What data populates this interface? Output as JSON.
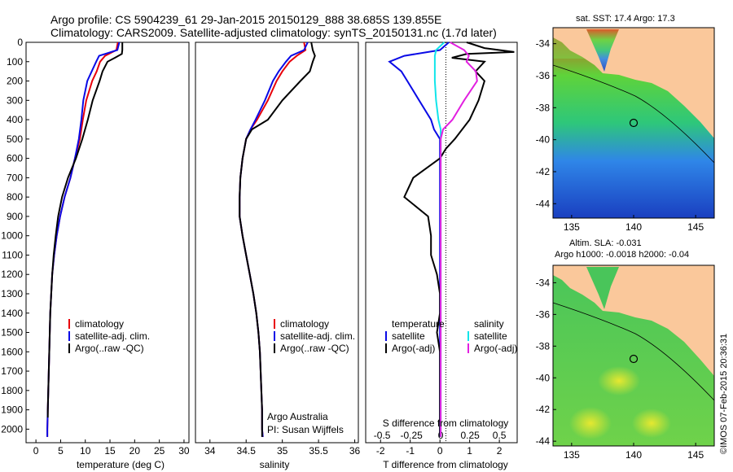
{
  "header": {
    "line1": "Argo profile: CS 5904239_61 29-Jan-2015 20150129_888 38.685S 139.855E",
    "line2": "Climatology: CARS2009. Satellite-adjusted climatology: synTS_20150131.nc (1.7d later)"
  },
  "colors": {
    "climatology": "#e8000b",
    "satellite": "#0a0ae6",
    "argo": "#000000",
    "sat_salinity": "#11e5ea",
    "argo_salinity_adj": "#e21fe0"
  },
  "panels": {
    "depth_ticks": [
      "0",
      "100",
      "200",
      "300",
      "400",
      "500",
      "600",
      "700",
      "800",
      "900",
      "1000",
      "1100",
      "1200",
      "1300",
      "1400",
      "1500",
      "1600",
      "1700",
      "1800",
      "1900",
      "2000"
    ],
    "temperature": {
      "xlabel": "temperature (deg C)",
      "xticks": [
        "0",
        "5",
        "10",
        "15",
        "20",
        "25",
        "30"
      ],
      "legend": [
        "climatology",
        "satellite-adj. clim.",
        "Argo(..raw -QC)"
      ]
    },
    "salinity": {
      "xlabel": "salinity",
      "xticks": [
        "34",
        "34.5",
        "35",
        "35.5",
        "36"
      ],
      "legend": [
        "climatology",
        "satellite-adj. clim.",
        "Argo(..raw -QC)"
      ],
      "note1": "Argo Australia",
      "note2": "PI: Susan Wijffels"
    },
    "difference": {
      "xlabel": "T difference from climatology",
      "top_label": "S difference from climatology",
      "sticks": [
        "-0.5",
        "-0.25",
        "0",
        "0.25",
        "0.5"
      ],
      "xticks": [
        "-2",
        "-1",
        "0",
        "1",
        "2"
      ],
      "legend_t_title": "temperature",
      "legend_s_title": "salinity",
      "legend": [
        "satellite",
        "Argo(-adj)",
        "satellite",
        "Argo(-adj)"
      ]
    }
  },
  "maps": {
    "sst_title": "sat. SST: 17.4  Argo: 17.3",
    "sla_title1": "Altim. SLA: -0.031",
    "sla_title2": "Argo h1000: -0.0018 h2000: -0.04",
    "lat_ticks": [
      "-34",
      "-36",
      "-38",
      "-40",
      "-42",
      "-44"
    ],
    "lon_ticks": [
      "135",
      "140",
      "145"
    ],
    "stamp": "©IMOS 07-Feb-2015 20:36:31"
  },
  "chart_data": [
    {
      "type": "line",
      "title": "",
      "xlabel": "temperature (deg C)",
      "ylabel": "",
      "xlim": [
        -2,
        31
      ],
      "ylim": [
        2070,
        0
      ],
      "series": [
        {
          "name": "climatology",
          "points": [
            [
              16.6,
              0
            ],
            [
              16.3,
              40
            ],
            [
              14,
              70
            ],
            [
              13,
              100
            ],
            [
              12.3,
              150
            ],
            [
              11.4,
              200
            ],
            [
              10.2,
              300
            ],
            [
              9.5,
              400
            ],
            [
              8.9,
              500
            ],
            [
              7.9,
              600
            ],
            [
              7,
              700
            ],
            [
              5.8,
              800
            ],
            [
              4.9,
              900
            ],
            [
              4.2,
              1000
            ],
            [
              3.7,
              1100
            ],
            [
              3.3,
              1200
            ],
            [
              3.1,
              1300
            ],
            [
              2.9,
              1400
            ],
            [
              2.8,
              1500
            ],
            [
              2.7,
              1600
            ],
            [
              2.6,
              1700
            ],
            [
              2.5,
              1800
            ],
            [
              2.4,
              1900
            ],
            [
              2.3,
              2000
            ],
            [
              2.3,
              2040
            ]
          ]
        },
        {
          "name": "satellite-adj. clim.",
          "points": [
            [
              16.9,
              0
            ],
            [
              16.5,
              40
            ],
            [
              12.8,
              70
            ],
            [
              12.2,
              100
            ],
            [
              11.3,
              150
            ],
            [
              10.4,
              200
            ],
            [
              9.6,
              300
            ],
            [
              9.2,
              400
            ],
            [
              8.7,
              500
            ],
            [
              7.9,
              600
            ],
            [
              7,
              700
            ],
            [
              5.8,
              800
            ],
            [
              4.9,
              900
            ],
            [
              4.2,
              1000
            ],
            [
              3.7,
              1100
            ],
            [
              3.3,
              1200
            ],
            [
              3.1,
              1300
            ],
            [
              2.9,
              1400
            ],
            [
              2.8,
              1500
            ],
            [
              2.7,
              1600
            ],
            [
              2.6,
              1700
            ],
            [
              2.5,
              1800
            ],
            [
              2.4,
              1900
            ],
            [
              2.3,
              2000
            ],
            [
              2.3,
              2040
            ]
          ]
        },
        {
          "name": "Argo(..raw -QC)",
          "points": [
            [
              17.5,
              0
            ],
            [
              17.5,
              40
            ],
            [
              17.4,
              60
            ],
            [
              16,
              80
            ],
            [
              14.5,
              100
            ],
            [
              13.5,
              150
            ],
            [
              12.9,
              200
            ],
            [
              11.5,
              300
            ],
            [
              10.5,
              400
            ],
            [
              9.4,
              500
            ],
            [
              8.1,
              600
            ],
            [
              6.5,
              700
            ],
            [
              5.3,
              800
            ],
            [
              4.5,
              900
            ],
            [
              4,
              1000
            ],
            [
              3.6,
              1100
            ],
            [
              3.3,
              1200
            ],
            [
              3.1,
              1300
            ],
            [
              2.9,
              1400
            ],
            [
              2.8,
              1500
            ],
            [
              2.7,
              1600
            ],
            [
              2.6,
              1700
            ],
            [
              2.5,
              1800
            ],
            [
              2.4,
              1900
            ],
            [
              2.4,
              1940
            ]
          ]
        }
      ]
    },
    {
      "type": "line",
      "title": "",
      "xlabel": "salinity",
      "ylabel": "",
      "xlim": [
        33.8,
        36.05
      ],
      "ylim": [
        2070,
        0
      ],
      "series": [
        {
          "name": "climatology",
          "points": [
            [
              35.3,
              0
            ],
            [
              35.32,
              40
            ],
            [
              35.2,
              70
            ],
            [
              35.1,
              100
            ],
            [
              35.0,
              150
            ],
            [
              34.92,
              200
            ],
            [
              34.8,
              300
            ],
            [
              34.65,
              400
            ],
            [
              34.56,
              450
            ],
            [
              34.5,
              500
            ],
            [
              34.45,
              600
            ],
            [
              34.42,
              700
            ],
            [
              34.41,
              800
            ],
            [
              34.41,
              900
            ],
            [
              34.45,
              1000
            ],
            [
              34.5,
              1100
            ],
            [
              34.55,
              1200
            ],
            [
              34.6,
              1300
            ],
            [
              34.64,
              1400
            ],
            [
              34.67,
              1500
            ],
            [
              34.69,
              1600
            ],
            [
              34.7,
              1700
            ],
            [
              34.71,
              1800
            ],
            [
              34.72,
              1900
            ],
            [
              34.72,
              2000
            ],
            [
              34.73,
              2040
            ]
          ]
        },
        {
          "name": "satellite-adj. clim.",
          "points": [
            [
              35.35,
              0
            ],
            [
              35.3,
              40
            ],
            [
              35.12,
              70
            ],
            [
              35.05,
              100
            ],
            [
              34.95,
              150
            ],
            [
              34.87,
              200
            ],
            [
              34.76,
              300
            ],
            [
              34.63,
              400
            ],
            [
              34.56,
              450
            ],
            [
              34.5,
              500
            ],
            [
              34.45,
              600
            ],
            [
              34.42,
              700
            ],
            [
              34.41,
              800
            ],
            [
              34.41,
              900
            ],
            [
              34.45,
              1000
            ],
            [
              34.5,
              1100
            ],
            [
              34.55,
              1200
            ],
            [
              34.6,
              1300
            ],
            [
              34.64,
              1400
            ],
            [
              34.67,
              1500
            ],
            [
              34.69,
              1600
            ],
            [
              34.7,
              1700
            ],
            [
              34.71,
              1800
            ],
            [
              34.72,
              1900
            ],
            [
              34.72,
              2000
            ],
            [
              34.73,
              2040
            ]
          ]
        },
        {
          "name": "Argo(..raw -QC)",
          "points": [
            [
              35.4,
              0
            ],
            [
              35.42,
              40
            ],
            [
              35.45,
              70
            ],
            [
              35.42,
              100
            ],
            [
              35.38,
              150
            ],
            [
              35.25,
              200
            ],
            [
              35.0,
              300
            ],
            [
              34.8,
              400
            ],
            [
              34.58,
              450
            ],
            [
              34.5,
              500
            ],
            [
              34.45,
              600
            ],
            [
              34.42,
              700
            ],
            [
              34.41,
              800
            ],
            [
              34.41,
              900
            ],
            [
              34.45,
              1000
            ],
            [
              34.5,
              1100
            ],
            [
              34.55,
              1200
            ],
            [
              34.6,
              1300
            ],
            [
              34.64,
              1400
            ],
            [
              34.67,
              1500
            ],
            [
              34.69,
              1600
            ],
            [
              34.7,
              1700
            ],
            [
              34.71,
              1800
            ],
            [
              34.72,
              1900
            ],
            [
              34.72,
              2000
            ],
            [
              34.72,
              2040
            ]
          ]
        }
      ]
    },
    {
      "type": "line",
      "title": "",
      "xlabel": "T difference from climatology",
      "ylabel": "",
      "xlim": [
        -2.5,
        2.6
      ],
      "ylim": [
        2070,
        0
      ],
      "series": [
        {
          "name": "temperature satellite",
          "points": [
            [
              0.3,
              0
            ],
            [
              0,
              40
            ],
            [
              -1.2,
              70
            ],
            [
              -1.7,
              100
            ],
            [
              -1.3,
              150
            ],
            [
              -1.1,
              200
            ],
            [
              -0.7,
              300
            ],
            [
              -0.3,
              400
            ],
            [
              -0.2,
              450
            ],
            [
              0,
              500
            ],
            [
              0,
              1000
            ],
            [
              0,
              2040
            ]
          ]
        },
        {
          "name": "temperature Argo(-adj)",
          "points": [
            [
              0.9,
              0
            ],
            [
              1.5,
              30
            ],
            [
              2.5,
              50
            ],
            [
              0.9,
              60
            ],
            [
              0.4,
              80
            ],
            [
              1.5,
              100
            ],
            [
              1.2,
              150
            ],
            [
              1.5,
              200
            ],
            [
              1.3,
              300
            ],
            [
              1,
              400
            ],
            [
              0.5,
              500
            ],
            [
              0.2,
              550
            ],
            [
              0,
              600
            ],
            [
              -0.9,
              700
            ],
            [
              -1.2,
              800
            ],
            [
              -0.4,
              900
            ],
            [
              -0.3,
              1000
            ],
            [
              -0.3,
              1100
            ],
            [
              -0.1,
              1200
            ],
            [
              0,
              1300
            ],
            [
              0,
              1400
            ],
            [
              -0.1,
              1500
            ],
            [
              0,
              1600
            ],
            [
              0,
              2000
            ],
            [
              0,
              2040
            ]
          ]
        },
        {
          "name": "salinity satellite",
          "points": [
            [
              0.03,
              0
            ],
            [
              -0.04,
              40
            ],
            [
              -0.05,
              70
            ],
            [
              -0.05,
              100
            ],
            [
              -0.05,
              150
            ],
            [
              -0.05,
              200
            ],
            [
              -0.04,
              300
            ],
            [
              -0.02,
              400
            ],
            [
              0,
              450
            ],
            [
              0,
              500
            ],
            [
              0,
              2040
            ]
          ]
        },
        {
          "name": "salinity Argo(-adj)",
          "points": [
            [
              0.08,
              0
            ],
            [
              0.2,
              40
            ],
            [
              0.24,
              70
            ],
            [
              0.22,
              100
            ],
            [
              0.3,
              150
            ],
            [
              0.31,
              200
            ],
            [
              0.2,
              300
            ],
            [
              0.1,
              400
            ],
            [
              0.02,
              450
            ],
            [
              0,
              500
            ],
            [
              0,
              2040
            ]
          ]
        }
      ]
    }
  ]
}
